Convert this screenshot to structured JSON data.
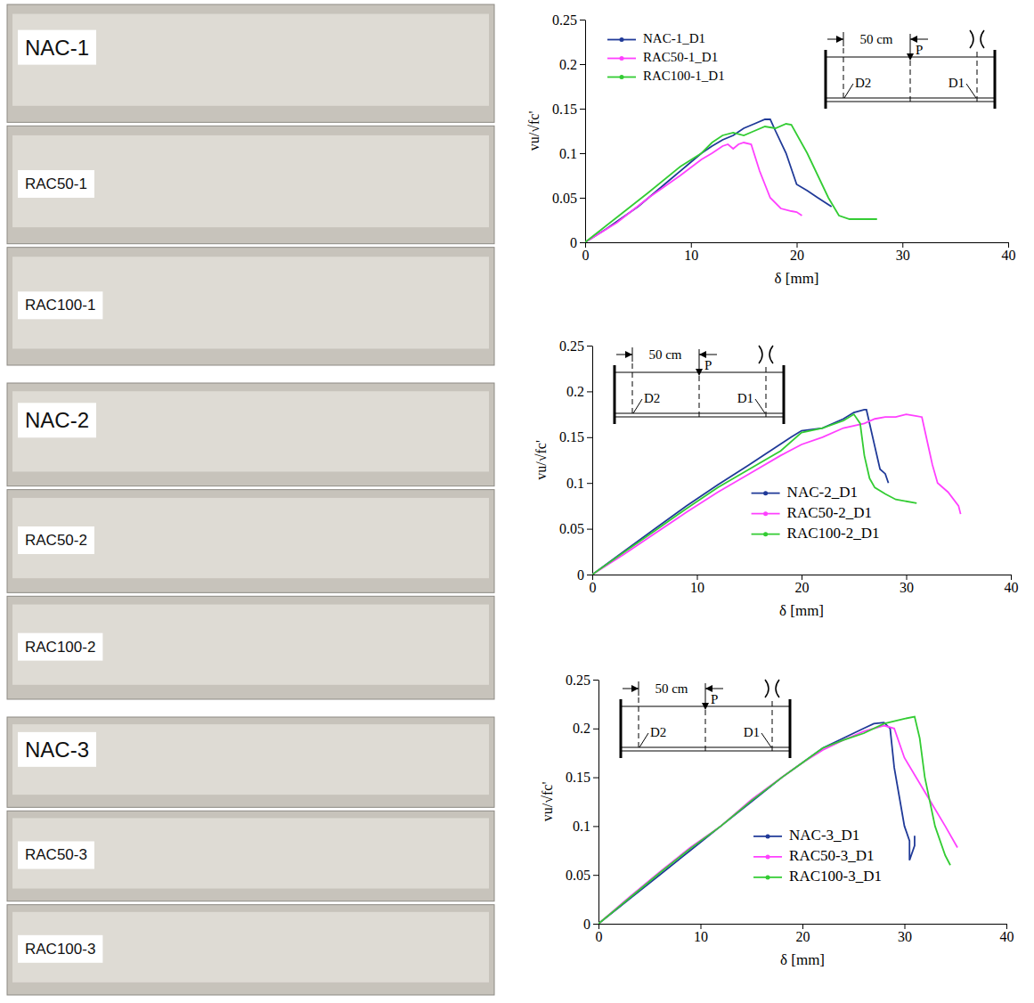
{
  "photos": [
    {
      "labels": [
        "NAC-1",
        "RAC50-1",
        "RAC100-1"
      ]
    },
    {
      "labels": [
        "NAC-2",
        "RAC50-2",
        "RAC100-2"
      ]
    },
    {
      "labels": [
        "NAC-3",
        "RAC50-3",
        "RAC100-3"
      ]
    }
  ],
  "chart_data": [
    {
      "type": "line",
      "x_label": "δ [mm]",
      "y_label": "vu/√fc'",
      "xlim": [
        0,
        40
      ],
      "ylim": [
        0,
        0.25
      ],
      "xticks": [
        0,
        10,
        20,
        30,
        40
      ],
      "yticks": [
        0,
        0.05,
        0.1,
        0.15,
        0.2,
        0.25
      ],
      "legend": "upper left",
      "annotations": [
        "50 cm",
        "P",
        "D2",
        "D1"
      ],
      "series": [
        {
          "name": "NAC-1_D1",
          "color": "#203a98",
          "x": [
            0,
            2,
            5,
            8,
            10,
            11,
            12,
            13,
            14,
            15,
            16,
            17,
            17.5,
            18,
            19,
            20,
            21,
            22,
            23.3
          ],
          "values": [
            0,
            0.015,
            0.04,
            0.07,
            0.09,
            0.1,
            0.108,
            0.115,
            0.12,
            0.128,
            0.133,
            0.138,
            0.138,
            0.125,
            0.1,
            0.065,
            0.058,
            0.05,
            0.04
          ]
        },
        {
          "name": "RAC50-1_D1",
          "color": "#ff40ff",
          "x": [
            0,
            3,
            6,
            9,
            11,
            12,
            13,
            13.5,
            14,
            14.5,
            15,
            15.7,
            16.5,
            17.5,
            18.5,
            19.5,
            20,
            20.5
          ],
          "values": [
            0,
            0.022,
            0.05,
            0.075,
            0.093,
            0.1,
            0.108,
            0.11,
            0.105,
            0.11,
            0.112,
            0.11,
            0.08,
            0.05,
            0.038,
            0.035,
            0.034,
            0.03
          ]
        },
        {
          "name": "RAC100-1_D1",
          "color": "#33cc33",
          "x": [
            0,
            3,
            6,
            9,
            11,
            12,
            13,
            14,
            15,
            16,
            17,
            18,
            19,
            19.5,
            21,
            23,
            24,
            25,
            27.6
          ],
          "values": [
            0,
            0.028,
            0.056,
            0.085,
            0.1,
            0.112,
            0.12,
            0.123,
            0.12,
            0.125,
            0.13,
            0.128,
            0.133,
            0.132,
            0.1,
            0.05,
            0.03,
            0.026,
            0.026
          ]
        }
      ]
    },
    {
      "type": "line",
      "x_label": "δ [mm]",
      "y_label": "vu/√fc'",
      "xlim": [
        0,
        40
      ],
      "ylim": [
        0,
        0.25
      ],
      "xticks": [
        0,
        10,
        20,
        30,
        40
      ],
      "yticks": [
        0,
        0.05,
        0.1,
        0.15,
        0.2,
        0.25
      ],
      "legend": "lower center",
      "annotations": [
        "50 cm",
        "P",
        "D2",
        "D1"
      ],
      "series": [
        {
          "name": "NAC-2_D1",
          "color": "#203a98",
          "x": [
            0,
            3,
            6,
            9,
            12,
            15,
            17,
            19,
            20,
            22,
            24,
            25,
            26,
            26.2,
            27,
            27.5,
            28,
            28.3
          ],
          "values": [
            0,
            0.025,
            0.05,
            0.075,
            0.098,
            0.12,
            0.135,
            0.15,
            0.157,
            0.16,
            0.17,
            0.177,
            0.18,
            0.18,
            0.14,
            0.115,
            0.11,
            0.1
          ]
        },
        {
          "name": "RAC50-2_D1",
          "color": "#ff40ff",
          "x": [
            0,
            3,
            6,
            9,
            12,
            15,
            18,
            20,
            22,
            24,
            26,
            27,
            28,
            29,
            30,
            31,
            31.5,
            32.5,
            33,
            34,
            35,
            35.2
          ],
          "values": [
            0,
            0.022,
            0.045,
            0.068,
            0.09,
            0.11,
            0.13,
            0.142,
            0.15,
            0.16,
            0.165,
            0.17,
            0.172,
            0.172,
            0.175,
            0.173,
            0.172,
            0.12,
            0.1,
            0.09,
            0.075,
            0.066
          ]
        },
        {
          "name": "RAC100-2_D1",
          "color": "#33cc33",
          "x": [
            0,
            3,
            6,
            9,
            12,
            15,
            18,
            20,
            22,
            24,
            25,
            25.6,
            26,
            26.5,
            27,
            28,
            29,
            31
          ],
          "values": [
            0,
            0.024,
            0.048,
            0.072,
            0.095,
            0.115,
            0.135,
            0.155,
            0.16,
            0.168,
            0.175,
            0.165,
            0.13,
            0.105,
            0.095,
            0.088,
            0.082,
            0.078
          ]
        }
      ]
    },
    {
      "type": "line",
      "x_label": "δ [mm]",
      "y_label": "vu/√fc'",
      "xlim": [
        0,
        40
      ],
      "ylim": [
        0,
        0.25
      ],
      "xticks": [
        0,
        10,
        20,
        30,
        40
      ],
      "yticks": [
        0,
        0.05,
        0.1,
        0.15,
        0.2,
        0.25
      ],
      "legend": "lower center",
      "annotations": [
        "50 cm",
        "P",
        "D2",
        "D1"
      ],
      "series": [
        {
          "name": "NAC-3_D1",
          "color": "#203a98",
          "x": [
            0,
            3,
            6,
            9,
            12,
            15,
            18,
            20,
            22,
            24,
            26,
            27,
            28,
            28.6,
            29,
            29.5,
            30,
            30.5,
            30.5,
            31,
            31
          ],
          "values": [
            0,
            0.025,
            0.05,
            0.075,
            0.1,
            0.125,
            0.15,
            0.165,
            0.18,
            0.19,
            0.2,
            0.205,
            0.206,
            0.2,
            0.16,
            0.13,
            0.1,
            0.085,
            0.065,
            0.08,
            0.09
          ]
        },
        {
          "name": "RAC50-3_D1",
          "color": "#ff40ff",
          "x": [
            0,
            3,
            6,
            9,
            12,
            15,
            18,
            20,
            22,
            24,
            26,
            28,
            29,
            30,
            32,
            34,
            35.2
          ],
          "values": [
            0,
            0.027,
            0.053,
            0.078,
            0.1,
            0.127,
            0.15,
            0.165,
            0.178,
            0.188,
            0.197,
            0.203,
            0.2,
            0.17,
            0.135,
            0.1,
            0.078
          ]
        },
        {
          "name": "RAC100-3_D1",
          "color": "#33cc33",
          "x": [
            0,
            3,
            6,
            9,
            12,
            15,
            18,
            20,
            22,
            24,
            26,
            28,
            30,
            31,
            31.5,
            32,
            33,
            34,
            34.5
          ],
          "values": [
            0,
            0.026,
            0.052,
            0.077,
            0.1,
            0.126,
            0.15,
            0.165,
            0.18,
            0.188,
            0.195,
            0.205,
            0.21,
            0.212,
            0.19,
            0.15,
            0.1,
            0.07,
            0.06
          ]
        }
      ]
    }
  ]
}
